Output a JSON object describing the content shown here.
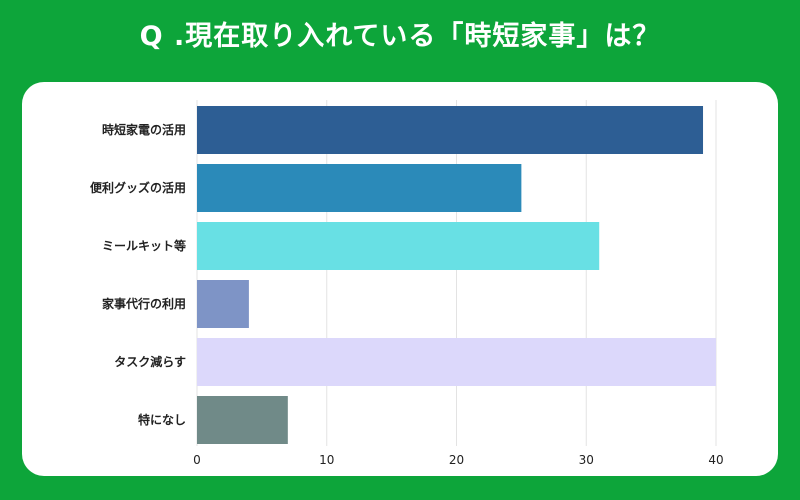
{
  "title": "Q .現在取り入れている「時短家事」は？",
  "chart_data": {
    "type": "bar",
    "orientation": "horizontal",
    "title": "Q .現在取り入れている「時短家事」は？",
    "categories": [
      "時短家電の活用",
      "便利グッズの活用",
      "ミールキット等",
      "家事代行の利用",
      "タスク減らす",
      "特になし"
    ],
    "values": [
      39,
      25,
      31,
      4,
      40,
      7
    ],
    "bar_colors": [
      "#2d5e94",
      "#2b8ab9",
      "#68e0e4",
      "#7e94c6",
      "#dcd8fb",
      "#708a88"
    ],
    "xlim": [
      0,
      40
    ],
    "xticks": [
      0,
      10,
      20,
      30,
      40
    ],
    "grid": true,
    "legend": "none"
  },
  "colors": {
    "background": "#0da53a",
    "card": "#ffffff",
    "grid": "#e3e3e3"
  }
}
